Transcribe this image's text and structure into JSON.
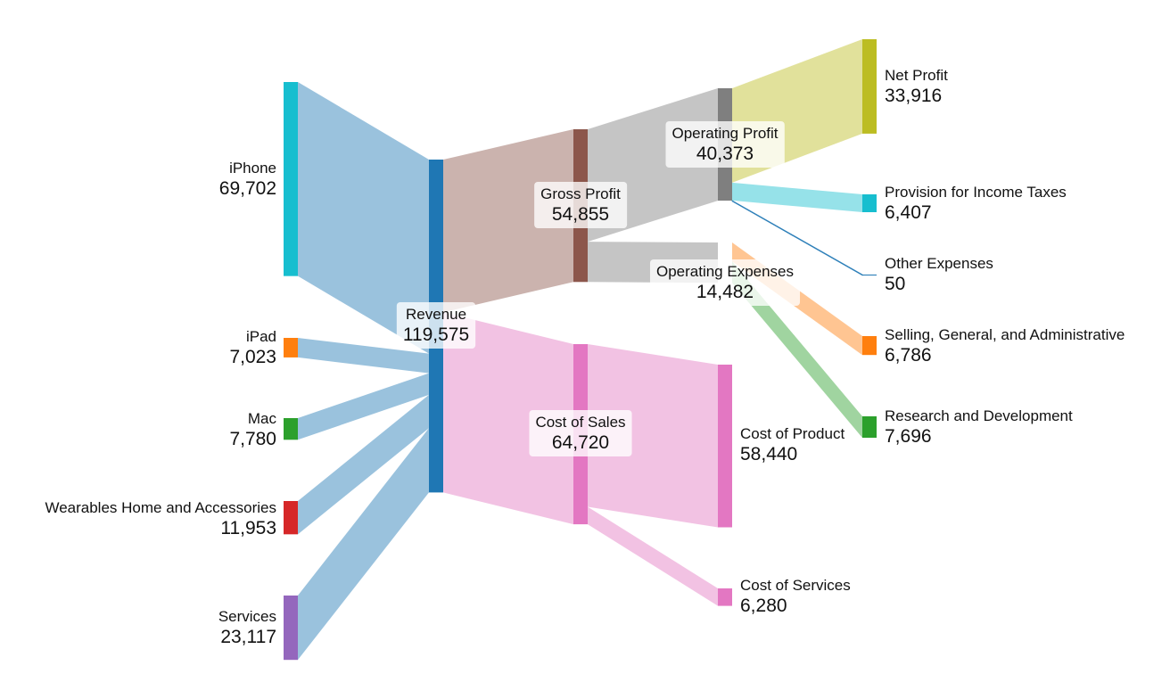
{
  "chart_data": {
    "type": "sankey",
    "title": "",
    "nodes": [
      {
        "id": "iphone",
        "name": "iPhone",
        "value": 69702,
        "value_label": "69,702",
        "color": "#17becf"
      },
      {
        "id": "ipad",
        "name": "iPad",
        "value": 7023,
        "value_label": "7,023",
        "color": "#ff7f0e"
      },
      {
        "id": "mac",
        "name": "Mac",
        "value": 7780,
        "value_label": "7,780",
        "color": "#2ca02c"
      },
      {
        "id": "wearables",
        "name": "Wearables Home and Accessories",
        "value": 11953,
        "value_label": "11,953",
        "color": "#d62728"
      },
      {
        "id": "services",
        "name": "Services",
        "value": 23117,
        "value_label": "23,117",
        "color": "#9467bd"
      },
      {
        "id": "revenue",
        "name": "Revenue",
        "value": 119575,
        "value_label": "119,575",
        "color": "#1f77b4"
      },
      {
        "id": "gross_profit",
        "name": "Gross Profit",
        "value": 54855,
        "value_label": "54,855",
        "color": "#8c564b"
      },
      {
        "id": "cost_of_sales",
        "name": "Cost of Sales",
        "value": 64720,
        "value_label": "64,720",
        "color": "#e377c2"
      },
      {
        "id": "operating_profit",
        "name": "Operating Profit",
        "value": 40373,
        "value_label": "40,373",
        "color": "#7f7f7f"
      },
      {
        "id": "operating_expenses",
        "name": "Operating Expenses",
        "value": 14482,
        "value_label": "14,482",
        "color": "#c7c7c7"
      },
      {
        "id": "cost_of_product",
        "name": "Cost of Product",
        "value": 58440,
        "value_label": "58,440",
        "color": "#e377c2"
      },
      {
        "id": "cost_of_services",
        "name": "Cost of Services",
        "value": 6280,
        "value_label": "6,280",
        "color": "#e377c2"
      },
      {
        "id": "net_profit",
        "name": "Net Profit",
        "value": 33916,
        "value_label": "33,916",
        "color": "#bcbd22"
      },
      {
        "id": "income_taxes",
        "name": "Provision for Income Taxes",
        "value": 6407,
        "value_label": "6,407",
        "color": "#17becf"
      },
      {
        "id": "other_expenses",
        "name": "Other Expenses",
        "value": 50,
        "value_label": "50",
        "color": "#1f77b4"
      },
      {
        "id": "sga",
        "name": "Selling, General, and Administrative",
        "value": 6786,
        "value_label": "6,786",
        "color": "#ff7f0e"
      },
      {
        "id": "rnd",
        "name": "Research and Development",
        "value": 7696,
        "value_label": "7,696",
        "color": "#2ca02c"
      }
    ],
    "links": [
      {
        "source": "iphone",
        "target": "revenue",
        "value": 69702
      },
      {
        "source": "ipad",
        "target": "revenue",
        "value": 7023
      },
      {
        "source": "mac",
        "target": "revenue",
        "value": 7780
      },
      {
        "source": "wearables",
        "target": "revenue",
        "value": 11953
      },
      {
        "source": "services",
        "target": "revenue",
        "value": 23117
      },
      {
        "source": "revenue",
        "target": "gross_profit",
        "value": 54855
      },
      {
        "source": "revenue",
        "target": "cost_of_sales",
        "value": 64720
      },
      {
        "source": "gross_profit",
        "target": "operating_profit",
        "value": 40373
      },
      {
        "source": "gross_profit",
        "target": "operating_expenses",
        "value": 14482
      },
      {
        "source": "operating_profit",
        "target": "net_profit",
        "value": 33916
      },
      {
        "source": "operating_profit",
        "target": "income_taxes",
        "value": 6407
      },
      {
        "source": "operating_profit",
        "target": "other_expenses",
        "value": 50
      },
      {
        "source": "operating_expenses",
        "target": "sga",
        "value": 6786
      },
      {
        "source": "operating_expenses",
        "target": "rnd",
        "value": 7696
      },
      {
        "source": "cost_of_sales",
        "target": "cost_of_product",
        "value": 58440
      },
      {
        "source": "cost_of_sales",
        "target": "cost_of_services",
        "value": 6280
      }
    ]
  }
}
